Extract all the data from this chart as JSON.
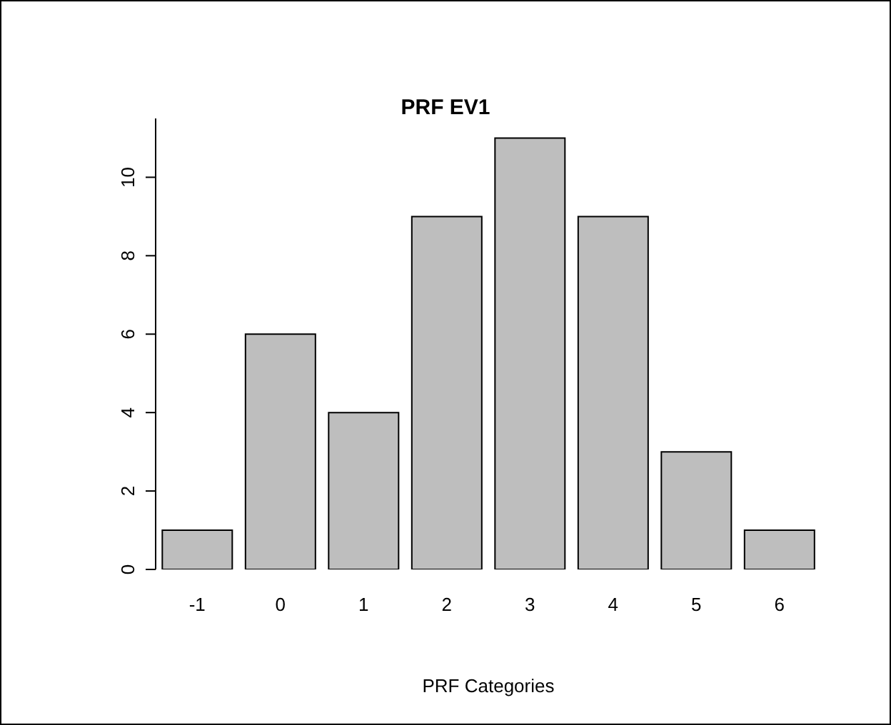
{
  "chart_data": {
    "type": "bar",
    "title": "PRF EV1",
    "xlabel": "PRF Categories",
    "categories": [
      "-1",
      "0",
      "1",
      "2",
      "3",
      "4",
      "5",
      "6"
    ],
    "values": [
      1,
      6,
      4,
      9,
      11,
      9,
      3,
      1
    ],
    "color": "#bebebe",
    "ylim": [
      0,
      11.5
    ],
    "yticks": [
      0,
      2,
      4,
      6,
      8,
      10
    ],
    "grid": false,
    "legend": false
  }
}
